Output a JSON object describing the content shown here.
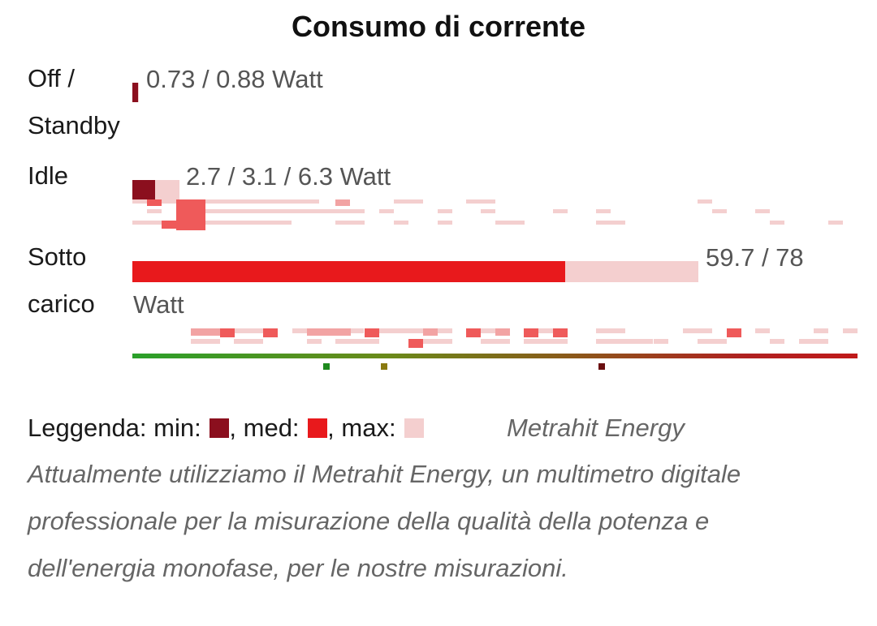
{
  "chart_data": {
    "type": "bar",
    "title": "Consumo di corrente",
    "scale_max_watt": 78,
    "categories": [
      {
        "label": [
          "Off /",
          "Standby"
        ],
        "min": 0.73,
        "max": 0.88,
        "value_text": "0.73 / 0.88 Watt"
      },
      {
        "label": [
          "Idle"
        ],
        "min": 2.7,
        "med": 3.1,
        "max": 6.3,
        "value_text": "2.7 / 3.1 / 6.3 Watt"
      },
      {
        "label": [
          "Sotto",
          "carico"
        ],
        "med": 59.7,
        "max": 78,
        "value_text_line1": "59.7 / 78",
        "value_text_line2": "Watt"
      }
    ],
    "colors": {
      "min": "#8b0f1e",
      "med": "#e8191c",
      "max": "#f4cfcf",
      "other_light": "#f2a3a3",
      "other_mid": "#ef5a5a"
    },
    "legend": {
      "prefix": "Leggenda:",
      "min_label": "min:",
      "med_label": "med:",
      "max_label": "max:",
      "sep": ","
    },
    "source": "Metrahit Energy",
    "note_lines": [
      "Attualmente utilizziamo il Metrahit Energy, un multimetro digitale",
      "professionale per la misurazione della qualità della potenza e",
      "dell'energia monofase, per le nostre misurazioni."
    ]
  }
}
